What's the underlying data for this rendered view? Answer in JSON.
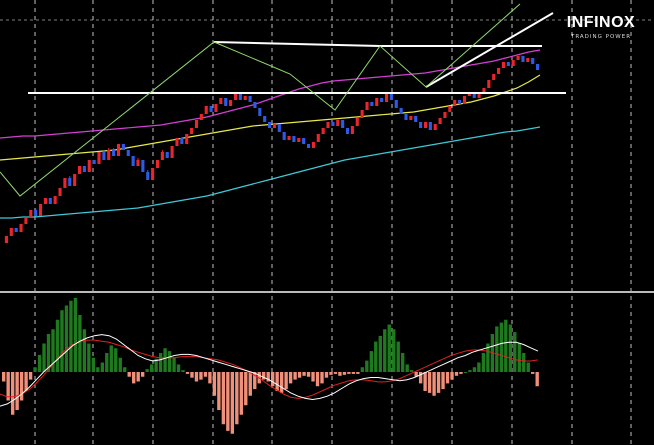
{
  "brand": {
    "name": "INFINOX",
    "tagline": "TRADING POWER"
  },
  "colors": {
    "background": "#000000",
    "bull_candle": "#e8262b",
    "bear_candle": "#2c5be8",
    "ma_fast": "#d43fd4",
    "ma_mid": "#e8e84a",
    "ma_slow": "#3ec9d6",
    "zigzag": "#8fd96a",
    "trendline": "#ffffff",
    "hist_positive": "#1f7a1f",
    "hist_negative": "#f0907a",
    "macd_line": "#ffffff",
    "signal_line": "#e02020",
    "grid": "#ffffff"
  },
  "chart_data": [
    {
      "type": "candlestick",
      "title": "",
      "annotations": [
        "support-resistance-lines",
        "zigzag",
        "rising-trendline"
      ],
      "grid": true,
      "candles": [
        [
          195,
          188,
          198,
          185
        ],
        [
          188,
          180,
          192,
          178
        ],
        [
          180,
          184,
          186,
          176
        ],
        [
          184,
          176,
          186,
          172
        ],
        [
          176,
          170,
          180,
          166
        ],
        [
          170,
          162,
          174,
          158
        ],
        [
          162,
          168,
          170,
          156
        ],
        [
          168,
          156,
          170,
          152
        ],
        [
          156,
          150,
          160,
          146
        ],
        [
          150,
          156,
          158,
          146
        ],
        [
          156,
          148,
          160,
          144
        ],
        [
          148,
          140,
          152,
          136
        ],
        [
          140,
          130,
          144,
          126
        ],
        [
          130,
          138,
          140,
          124
        ],
        [
          138,
          126,
          142,
          122
        ],
        [
          126,
          118,
          130,
          114
        ],
        [
          118,
          124,
          128,
          114
        ],
        [
          124,
          112,
          128,
          108
        ],
        [
          112,
          116,
          120,
          108
        ],
        [
          116,
          104,
          120,
          100
        ],
        [
          104,
          112,
          116,
          98
        ],
        [
          112,
          102,
          116,
          96
        ],
        [
          102,
          108,
          112,
          96
        ],
        [
          108,
          96,
          112,
          92
        ],
        [
          96,
          102,
          106,
          92
        ],
        [
          102,
          108,
          112,
          98
        ],
        [
          108,
          118,
          122,
          104
        ],
        [
          118,
          112,
          124,
          106
        ],
        [
          112,
          124,
          128,
          108
        ],
        [
          124,
          132,
          136,
          118
        ],
        [
          132,
          120,
          136,
          116
        ],
        [
          120,
          112,
          124,
          108
        ],
        [
          112,
          104,
          116,
          98
        ],
        [
          104,
          110,
          114,
          100
        ],
        [
          110,
          98,
          114,
          94
        ],
        [
          98,
          90,
          102,
          86
        ],
        [
          90,
          96,
          100,
          86
        ],
        [
          96,
          86,
          100,
          82
        ],
        [
          86,
          80,
          90,
          76
        ],
        [
          80,
          72,
          84,
          68
        ],
        [
          72,
          66,
          76,
          62
        ],
        [
          66,
          58,
          70,
          54
        ],
        [
          58,
          64,
          68,
          54
        ],
        [
          64,
          56,
          68,
          52
        ],
        [
          56,
          50,
          60,
          46
        ],
        [
          50,
          58,
          62,
          46
        ],
        [
          58,
          52,
          62,
          48
        ],
        [
          52,
          46,
          56,
          42
        ],
        [
          46,
          52,
          56,
          42
        ],
        [
          52,
          48,
          56,
          44
        ],
        [
          48,
          54,
          58,
          44
        ],
        [
          54,
          60,
          64,
          50
        ],
        [
          60,
          68,
          72,
          56
        ],
        [
          68,
          74,
          78,
          64
        ],
        [
          74,
          80,
          84,
          70
        ],
        [
          80,
          76,
          84,
          72
        ],
        [
          76,
          84,
          88,
          72
        ],
        [
          84,
          92,
          96,
          80
        ],
        [
          92,
          88,
          96,
          84
        ],
        [
          88,
          94,
          98,
          84
        ],
        [
          94,
          90,
          98,
          86
        ],
        [
          90,
          96,
          100,
          86
        ],
        [
          96,
          100,
          104,
          92
        ],
        [
          100,
          94,
          104,
          90
        ],
        [
          94,
          86,
          98,
          82
        ],
        [
          86,
          80,
          90,
          76
        ],
        [
          80,
          74,
          84,
          70
        ],
        [
          74,
          78,
          82,
          70
        ],
        [
          78,
          72,
          82,
          68
        ],
        [
          72,
          80,
          84,
          68
        ],
        [
          80,
          86,
          90,
          76
        ],
        [
          86,
          78,
          90,
          74
        ],
        [
          78,
          70,
          82,
          66
        ],
        [
          70,
          62,
          74,
          58
        ],
        [
          62,
          54,
          66,
          50
        ],
        [
          54,
          58,
          62,
          50
        ],
        [
          58,
          50,
          62,
          46
        ],
        [
          50,
          54,
          58,
          46
        ],
        [
          54,
          46,
          58,
          42
        ],
        [
          46,
          52,
          56,
          42
        ],
        [
          52,
          60,
          64,
          48
        ],
        [
          60,
          66,
          70,
          56
        ],
        [
          66,
          72,
          76,
          62
        ],
        [
          72,
          68,
          76,
          64
        ],
        [
          68,
          74,
          78,
          64
        ],
        [
          74,
          80,
          84,
          70
        ],
        [
          80,
          74,
          84,
          70
        ],
        [
          74,
          82,
          86,
          70
        ],
        [
          82,
          76,
          86,
          72
        ],
        [
          76,
          70,
          80,
          66
        ],
        [
          70,
          64,
          74,
          60
        ],
        [
          64,
          58,
          68,
          54
        ],
        [
          58,
          52,
          62,
          48
        ],
        [
          52,
          56,
          60,
          48
        ],
        [
          56,
          48,
          60,
          44
        ],
        [
          48,
          44,
          52,
          40
        ],
        [
          44,
          50,
          54,
          40
        ],
        [
          50,
          44,
          54,
          40
        ],
        [
          44,
          40,
          48,
          36
        ],
        [
          40,
          32,
          44,
          28
        ],
        [
          32,
          26,
          36,
          22
        ],
        [
          26,
          20,
          30,
          16
        ],
        [
          20,
          14,
          24,
          10
        ],
        [
          14,
          18,
          22,
          10
        ],
        [
          18,
          12,
          22,
          8
        ],
        [
          12,
          8,
          16,
          4
        ],
        [
          8,
          14,
          18,
          4
        ],
        [
          14,
          10,
          18,
          6
        ],
        [
          10,
          16,
          20,
          6
        ],
        [
          16,
          22,
          26,
          12
        ]
      ],
      "moving_averages": {
        "fast": [
          138,
          137,
          136,
          136,
          135,
          134,
          133,
          132,
          131,
          130,
          129,
          128,
          127,
          126,
          125,
          123,
          121,
          119,
          117,
          114,
          111,
          108,
          105,
          101,
          97,
          93,
          89,
          86,
          83,
          81,
          80,
          79,
          78,
          77,
          76,
          75,
          74,
          73,
          71,
          69,
          67,
          65,
          63,
          61,
          58,
          55,
          52,
          50
        ],
        "mid": [
          160,
          159,
          158,
          157,
          156,
          155,
          154,
          153,
          152,
          151,
          150,
          148,
          146,
          144,
          142,
          140,
          138,
          136,
          134,
          132,
          130,
          128,
          126,
          125,
          124,
          123,
          122,
          121,
          120,
          119,
          118,
          117,
          116,
          115,
          114,
          113,
          112,
          110,
          108,
          106,
          104,
          102,
          99,
          96,
          92,
          88,
          82,
          75
        ],
        "slow": [
          218,
          218,
          217,
          217,
          216,
          215,
          214,
          213,
          212,
          211,
          210,
          209,
          208,
          206,
          204,
          202,
          200,
          198,
          196,
          193,
          190,
          187,
          184,
          181,
          178,
          175,
          172,
          169,
          166,
          163,
          160,
          158,
          156,
          154,
          152,
          150,
          148,
          146,
          144,
          142,
          140,
          138,
          136,
          134,
          132,
          131,
          129,
          127
        ]
      }
    },
    {
      "type": "bar",
      "title": "",
      "indicator": "MACD",
      "grid": true,
      "histogram": [
        -10,
        -30,
        -45,
        -40,
        -30,
        -20,
        -8,
        5,
        18,
        30,
        40,
        45,
        55,
        65,
        70,
        75,
        78,
        60,
        45,
        30,
        15,
        5,
        10,
        20,
        28,
        25,
        15,
        5,
        -5,
        -12,
        -10,
        -5,
        3,
        8,
        14,
        20,
        25,
        22,
        15,
        8,
        2,
        -2,
        -6,
        -10,
        -8,
        -5,
        -12,
        -25,
        -40,
        -55,
        -62,
        -65,
        -55,
        -45,
        -35,
        -25,
        -18,
        -12,
        -8,
        -10,
        -15,
        -20,
        -22,
        -18,
        -12,
        -8,
        -6,
        -4,
        -5,
        -10,
        -15,
        -12,
        -6,
        -3,
        -2,
        -4,
        -3,
        -2,
        -2,
        -2,
        5,
        12,
        22,
        32,
        38,
        45,
        50,
        45,
        32,
        20,
        8,
        2,
        -5,
        -12,
        -20,
        -22,
        -25,
        -22,
        -18,
        -12,
        -8,
        -4,
        -2,
        0,
        2,
        5,
        10,
        20,
        30,
        40,
        48,
        52,
        55,
        50,
        42,
        30,
        20,
        10,
        -2,
        -15
      ],
      "macd_line": [
        -62,
        -58,
        -50,
        -40,
        -28,
        -14,
        0,
        12,
        24,
        36,
        48,
        56,
        62,
        66,
        68,
        66,
        60,
        50,
        40,
        30,
        24,
        20,
        22,
        26,
        30,
        32,
        32,
        30,
        26,
        22,
        18,
        14,
        10,
        6,
        2,
        -2,
        -8,
        -14,
        -22,
        -30,
        -38,
        -44,
        -48,
        -50,
        -48,
        -44,
        -38,
        -30,
        -22,
        -16,
        -12,
        -10,
        -10,
        -12,
        -14,
        -16,
        -14,
        -10,
        -4,
        2,
        8,
        14,
        20,
        26,
        30,
        36,
        40,
        44,
        48,
        52,
        54,
        54,
        50,
        44,
        38
      ],
      "signal_line": [
        -40,
        -45,
        -45,
        -40,
        -32,
        -20,
        -6,
        10,
        26,
        40,
        50,
        56,
        58,
        58,
        56,
        54,
        50,
        46,
        40,
        36,
        32,
        28,
        26,
        26,
        26,
        28,
        28,
        28,
        26,
        24,
        22,
        18,
        14,
        8,
        2,
        -6,
        -14,
        -24,
        -32,
        -40,
        -46,
        -48,
        -46,
        -42,
        -36,
        -30,
        -24,
        -20,
        -16,
        -14,
        -14,
        -16,
        -18,
        -18,
        -16,
        -12,
        -6,
        0,
        6,
        12,
        18,
        24,
        30,
        34,
        38,
        40,
        40,
        38,
        34,
        30,
        26,
        22,
        20,
        20,
        22
      ]
    }
  ]
}
